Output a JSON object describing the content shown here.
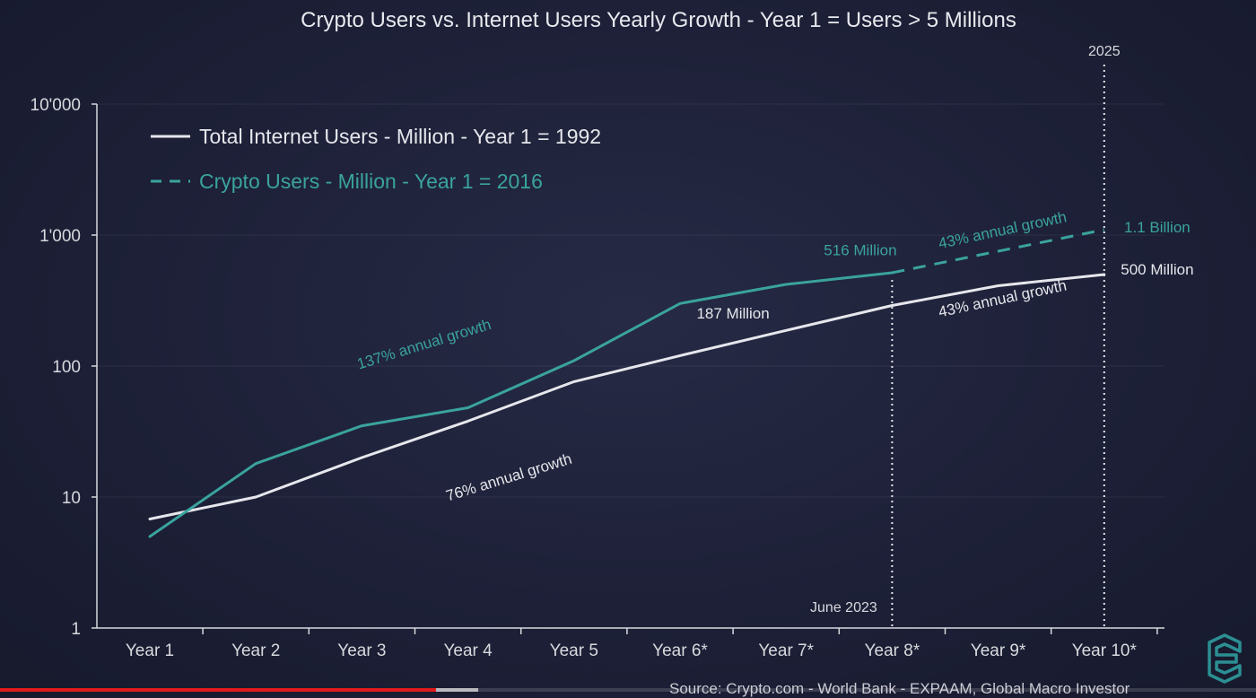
{
  "chart_data": {
    "type": "line",
    "title": "Crypto Users vs. Internet Users Yearly Growth - Year 1 = Users > 5 Millions",
    "categories": [
      "Year 1",
      "Year 2",
      "Year 3",
      "Year 4",
      "Year 5",
      "Year 6*",
      "Year 7*",
      "Year 8*",
      "Year 9*",
      "Year 10*"
    ],
    "y_scale": "log",
    "ylim": [
      1,
      10000
    ],
    "y_ticks": [
      {
        "value": 1,
        "label": "1"
      },
      {
        "value": 10,
        "label": "10"
      },
      {
        "value": 100,
        "label": "100"
      },
      {
        "value": 1000,
        "label": "1'000"
      },
      {
        "value": 10000,
        "label": "10'000"
      }
    ],
    "grid": true,
    "legend_position": "top-left",
    "series": [
      {
        "name": "Total Internet Users - Million - Year 1 = 1992",
        "style": "solid",
        "color": "#e6e7ec",
        "x": [
          1,
          2,
          3,
          4,
          5,
          6,
          7,
          8,
          9,
          10
        ],
        "values": [
          6.8,
          10,
          20,
          38,
          76,
          120,
          187,
          290,
          410,
          500
        ]
      },
      {
        "name": "Crypto Users - Million - Year 1 = 2016",
        "style": "solid",
        "color": "#3aa39d",
        "x": [
          1,
          2,
          3,
          4,
          5,
          6,
          7,
          8
        ],
        "values": [
          5,
          18,
          35,
          48,
          110,
          300,
          420,
          516
        ]
      },
      {
        "name": "Crypto Users - Million - Year 1 = 2016",
        "style": "dashed",
        "color": "#3aa39d",
        "x": [
          8,
          10
        ],
        "values": [
          516,
          1100
        ]
      }
    ],
    "annotations": [
      {
        "text": "137% annual growth",
        "color": "#3aa39d",
        "x": 3.6,
        "y": 135,
        "angle": -17
      },
      {
        "text": "76% annual growth",
        "color": "#e6e7ec",
        "x": 4.4,
        "y": 13,
        "angle": -17
      },
      {
        "text": "187 Million",
        "color": "#e6e7ec",
        "x": 6.5,
        "y": 230,
        "angle": 0
      },
      {
        "text": "516 Million",
        "color": "#3aa39d",
        "x": 7.7,
        "y": 700,
        "angle": 0
      },
      {
        "text": "43% annual growth",
        "color": "#3aa39d",
        "x": 9.05,
        "y": 1000,
        "angle": -12
      },
      {
        "text": "43% annual growth",
        "color": "#e6e7ec",
        "x": 9.05,
        "y": 300,
        "angle": -12
      },
      {
        "text": "1.1 Billion",
        "color": "#3aa39d",
        "x": 10.5,
        "y": 1050,
        "angle": 0
      },
      {
        "text": "500 Million",
        "color": "#e6e7ec",
        "x": 10.5,
        "y": 500,
        "angle": 0
      }
    ],
    "vertical_markers": [
      {
        "x": 8,
        "label": "June 2023",
        "label_position": "bottom",
        "from_value": 516
      },
      {
        "x": 10,
        "label": "2025",
        "label_position": "top",
        "from_value": null
      }
    ]
  },
  "source": "Source: Crypto.com - World Bank - EXPAAM, Global Macro Investor",
  "video": {
    "played_fraction": 0.347,
    "buffered_to_fraction": 0.381
  },
  "colors": {
    "background": "#1d2037",
    "crypto": "#3aa39d",
    "internet": "#e6e7ec",
    "axis": "#d8d9de"
  }
}
